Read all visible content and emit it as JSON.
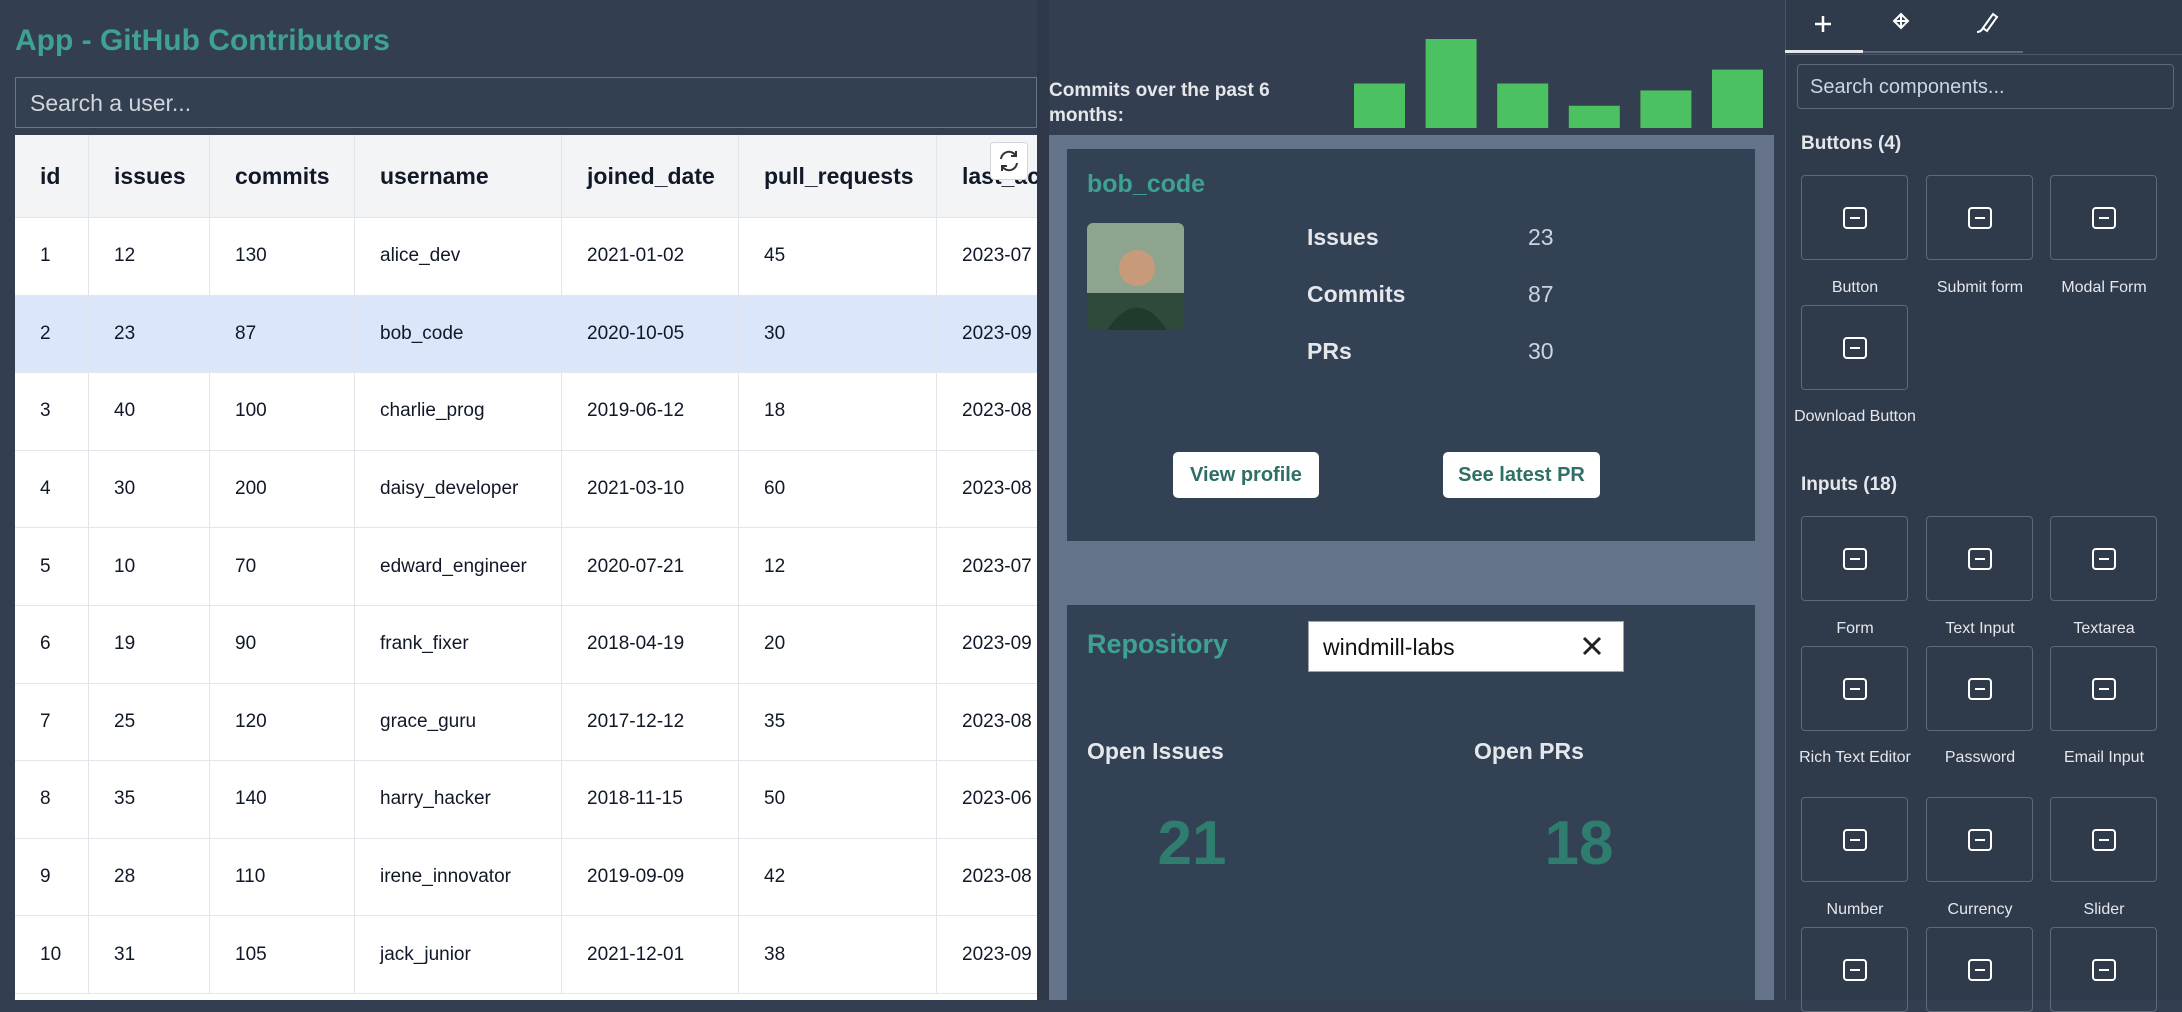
{
  "header": {
    "title": "App - GitHub Contributors"
  },
  "search": {
    "placeholder": "Search a user..."
  },
  "table": {
    "columns": [
      "id",
      "issues",
      "commits",
      "username",
      "joined_date",
      "pull_requests",
      "last_ac"
    ],
    "rows": [
      [
        "1",
        "12",
        "130",
        "alice_dev",
        "2021-01-02",
        "45",
        "2023-07"
      ],
      [
        "2",
        "23",
        "87",
        "bob_code",
        "2020-10-05",
        "30",
        "2023-09"
      ],
      [
        "3",
        "40",
        "100",
        "charlie_prog",
        "2019-06-12",
        "18",
        "2023-08"
      ],
      [
        "4",
        "30",
        "200",
        "daisy_developer",
        "2021-03-10",
        "60",
        "2023-08"
      ],
      [
        "5",
        "10",
        "70",
        "edward_engineer",
        "2020-07-21",
        "12",
        "2023-07"
      ],
      [
        "6",
        "19",
        "90",
        "frank_fixer",
        "2018-04-19",
        "20",
        "2023-09"
      ],
      [
        "7",
        "25",
        "120",
        "grace_guru",
        "2017-12-12",
        "35",
        "2023-08"
      ],
      [
        "8",
        "35",
        "140",
        "harry_hacker",
        "2018-11-15",
        "50",
        "2023-06"
      ],
      [
        "9",
        "28",
        "110",
        "irene_innovator",
        "2019-09-09",
        "42",
        "2023-08"
      ],
      [
        "10",
        "31",
        "105",
        "jack_junior",
        "2021-12-01",
        "38",
        "2023-09"
      ]
    ]
  },
  "chart": {
    "label": "Commits over the past 6 months:",
    "values": [
      32,
      64,
      32,
      16,
      27,
      42
    ],
    "color": "#4cc162"
  },
  "profile": {
    "username": "bob_code",
    "stats": [
      {
        "label": "Issues",
        "value": 23
      },
      {
        "label": "Commits",
        "value": 87
      },
      {
        "label": "PRs",
        "value": 30
      }
    ],
    "buttons": [
      "View profile",
      "See latest PR"
    ]
  },
  "repository": {
    "label": "Repository",
    "input": "windmill-labs",
    "metrics": [
      {
        "label": "Open Issues",
        "value": 21
      },
      {
        "label": "Open PRs",
        "value": 18
      }
    ]
  },
  "sidebar": {
    "search_placeholder": "Search components...",
    "sections": [
      {
        "title": "Buttons (4)",
        "items": [
          "Button",
          "Submit form",
          "Modal Form",
          "Download Button"
        ]
      },
      {
        "title": "Inputs (18)",
        "items": [
          "Form",
          "Text Input",
          "Textarea",
          "Rich Text Editor",
          "Password",
          "Email Input",
          "Number",
          "Currency",
          "Slider"
        ]
      }
    ]
  }
}
